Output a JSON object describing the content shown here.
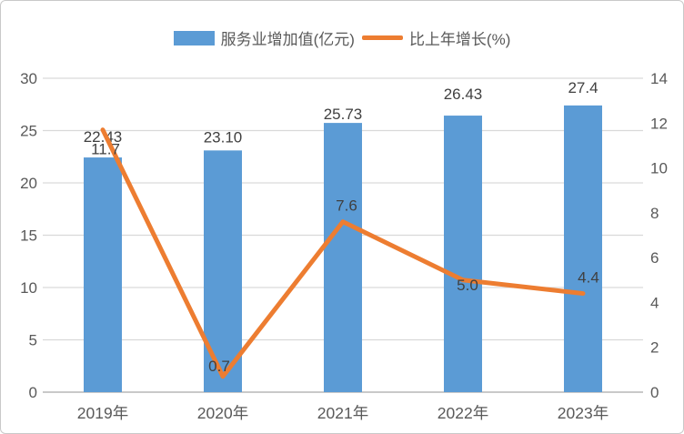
{
  "chart_data": {
    "type": "combo",
    "title": "",
    "categories": [
      "2019年",
      "2020年",
      "2021年",
      "2022年",
      "2023年"
    ],
    "series": [
      {
        "name": "服务业增加值(亿元)",
        "type": "bar",
        "axis": "left",
        "color": "#5B9BD5",
        "values": [
          22.43,
          23.1,
          25.73,
          26.43,
          27.4
        ],
        "labels": [
          "22.43",
          "23.10",
          "25.73",
          "26.43",
          "27.4"
        ]
      },
      {
        "name": "比上年增长(%)",
        "type": "line",
        "axis": "right",
        "color": "#ED7D31",
        "values": [
          11.7,
          0.7,
          7.6,
          5.0,
          4.4
        ],
        "labels": [
          "11.7",
          "0.7",
          "7.6",
          "5.0",
          "4.4"
        ]
      }
    ],
    "left_axis": {
      "min": 0,
      "max": 30,
      "step": 5,
      "ticks": [
        "0",
        "5",
        "10",
        "15",
        "20",
        "25",
        "30"
      ]
    },
    "right_axis": {
      "min": 0,
      "max": 14,
      "step": 2,
      "ticks": [
        "0",
        "2",
        "4",
        "6",
        "8",
        "10",
        "12",
        "14"
      ]
    },
    "grid": true,
    "legend_position": "top"
  },
  "colors": {
    "bar": "#5B9BD5",
    "line": "#ED7D31",
    "gridline": "#D9D9D9",
    "axis_line": "#C9C9C9",
    "tick_text": "#595959",
    "data_label_text": "#404040",
    "background": "#FFFFFF",
    "card_border": "#C9C9C9"
  }
}
